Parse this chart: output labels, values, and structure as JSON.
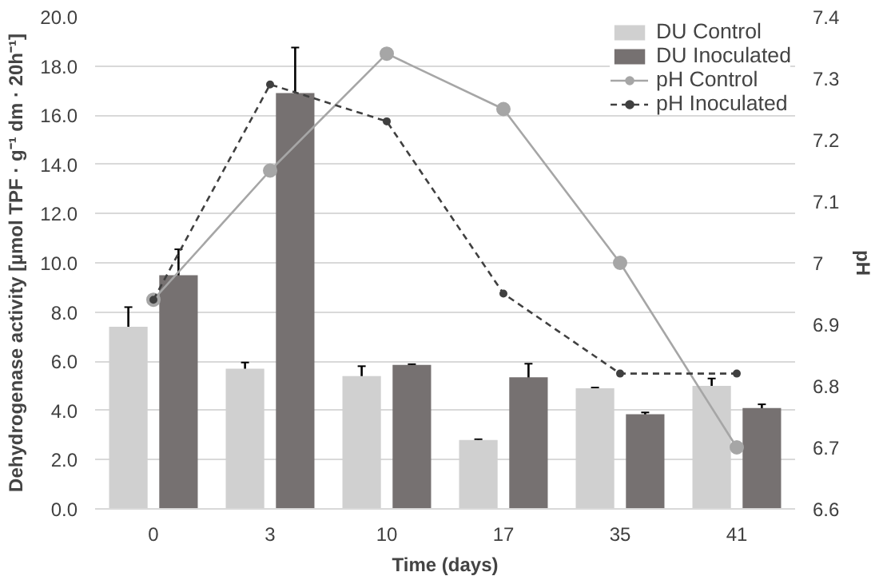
{
  "chart_data": {
    "type": "bar",
    "xlabel": "Time (days)",
    "ylabel": "Dehydrogenase activity [µmol TPF · g⁻¹ dm · 20h⁻¹]",
    "y2label": "pH",
    "categories": [
      "0",
      "3",
      "10",
      "17",
      "35",
      "41"
    ],
    "series": [
      {
        "name": "DU Control",
        "color": "#d0d0d0",
        "values": [
          7.4,
          5.7,
          5.4,
          2.8,
          4.9,
          5.0
        ],
        "errors": [
          0.8,
          0.25,
          0.4,
          0.03,
          0.03,
          0.3
        ]
      },
      {
        "name": "DU Inoculated",
        "color": "#767171",
        "values": [
          9.5,
          16.9,
          5.85,
          5.35,
          3.85,
          4.1
        ],
        "errors": [
          1.05,
          1.85,
          0.03,
          0.55,
          0.07,
          0.15
        ]
      },
      {
        "name": "pH Control",
        "type": "line",
        "axis": "y2",
        "color": "#a6a6a6",
        "line_style": "solid",
        "values": [
          6.94,
          7.15,
          7.34,
          7.25,
          7.0,
          6.7
        ]
      },
      {
        "name": "pH Inoculated",
        "type": "line",
        "axis": "y2",
        "color": "#404040",
        "line_style": "dashed",
        "values": [
          6.94,
          7.29,
          7.23,
          6.95,
          6.82,
          6.82
        ]
      }
    ],
    "ylim": [
      0,
      20
    ],
    "yticks": [
      {
        "value": 0,
        "label": "0.0"
      },
      {
        "value": 2,
        "label": "2.0"
      },
      {
        "value": 4,
        "label": "4.0"
      },
      {
        "value": 6,
        "label": "6.0"
      },
      {
        "value": 8,
        "label": "8.0"
      },
      {
        "value": 10,
        "label": "10.0"
      },
      {
        "value": 12,
        "label": "12.0"
      },
      {
        "value": 14,
        "label": "14.0"
      },
      {
        "value": 16,
        "label": "16.0"
      },
      {
        "value": 18,
        "label": "18.0"
      },
      {
        "value": 20,
        "label": "20.0"
      }
    ],
    "y2lim": [
      6.6,
      7.4
    ],
    "y2ticks": [
      6.6,
      6.7,
      6.8,
      6.9,
      7,
      7.1,
      7.2,
      7.3,
      7.4
    ],
    "tick_labels": "xy",
    "marker": "circle",
    "grid": "y",
    "legend": "top right"
  }
}
